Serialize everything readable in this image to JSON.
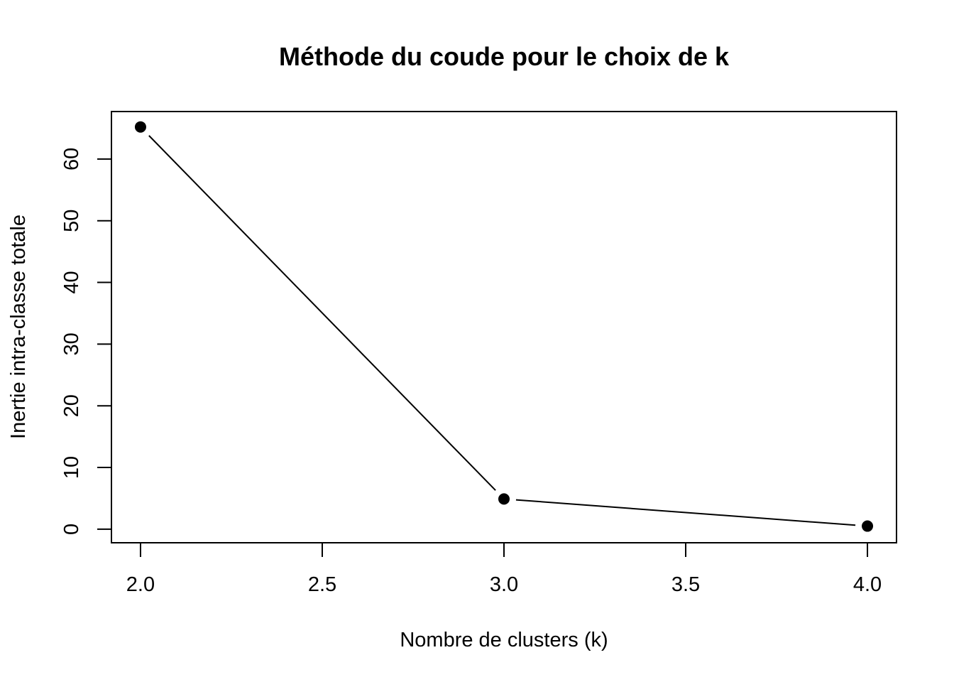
{
  "chart_data": {
    "type": "line",
    "title": "Méthode du coude pour le choix de k",
    "xlabel": "Nombre de clusters (k)",
    "ylabel": "Inertie intra-classe totale",
    "x": [
      2,
      3,
      4
    ],
    "series": [
      {
        "values": [
          65.2,
          4.9,
          0.5
        ]
      }
    ],
    "xlim": [
      1.92,
      4.08
    ],
    "ylim": [
      -2.2,
      67.7
    ],
    "xticks": [
      "2.0",
      "2.5",
      "3.0",
      "3.5",
      "4.0"
    ],
    "yticks": [
      "0",
      "10",
      "20",
      "30",
      "40",
      "50",
      "60"
    ],
    "marker": "filled-circle",
    "grid": false,
    "legend": "none",
    "colors": {
      "line": "#000000",
      "marker": "#000000",
      "axis": "#000000"
    }
  }
}
